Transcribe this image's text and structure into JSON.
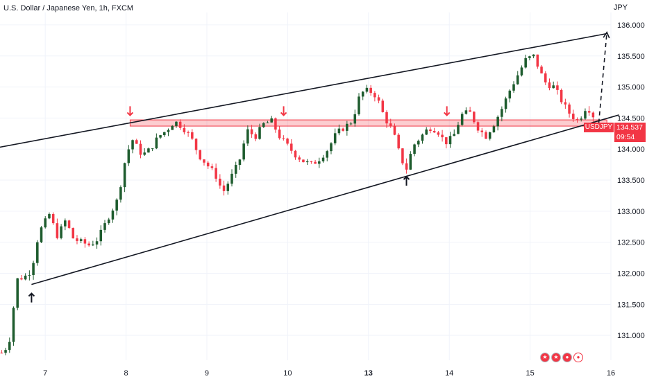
{
  "header": {
    "title_prefix": "U.S. Dollar / Japanese Yen, 1h, FXCM",
    "currency": "JPY"
  },
  "price_badge": {
    "symbol": "USDJPY",
    "price": "134.537",
    "countdown": "09:54",
    "color": "#f23645"
  },
  "bottom_icons": [
    "flag-us-icon",
    "flag-us-icon",
    "flag-jp-icon",
    "record-icon"
  ],
  "colors": {
    "up": "#089981",
    "up_fill": "#1e5c2e",
    "down": "#f23645",
    "trendline": "#131722",
    "zone_fill": "rgba(242,54,69,0.25)",
    "zone_border": "#f23645"
  },
  "chart_data": {
    "type": "candlestick",
    "title": "U.S. Dollar / Japanese Yen, 1h, FXCM",
    "ylabel": "JPY",
    "y_ticks": [
      "131.000",
      "131.500",
      "132.000",
      "132.500",
      "133.000",
      "133.500",
      "134.000",
      "134.500",
      "135.000",
      "135.500",
      "136.000"
    ],
    "ylim": [
      130.6,
      136.2
    ],
    "x_ticks": [
      {
        "label": "7",
        "x": 0.5,
        "bold": false
      },
      {
        "label": "8",
        "x": 1.5,
        "bold": false
      },
      {
        "label": "9",
        "x": 2.5,
        "bold": false
      },
      {
        "label": "10",
        "x": 3.5,
        "bold": false
      },
      {
        "label": "13",
        "x": 4.5,
        "bold": true
      },
      {
        "label": "14",
        "x": 5.5,
        "bold": false
      },
      {
        "label": "15",
        "x": 6.5,
        "bold": false
      },
      {
        "label": "16",
        "x": 7.5,
        "bold": false
      }
    ],
    "xlim": [
      -0.06,
      7.5
    ],
    "grid": true,
    "close_path": [
      [
        -0.04,
        130.72
      ],
      [
        0.05,
        130.85
      ],
      [
        0.15,
        131.9
      ],
      [
        0.25,
        131.95
      ],
      [
        0.33,
        132.05
      ],
      [
        0.42,
        132.65
      ],
      [
        0.55,
        132.95
      ],
      [
        0.65,
        132.6
      ],
      [
        0.75,
        132.85
      ],
      [
        0.85,
        132.55
      ],
      [
        0.95,
        132.5
      ],
      [
        1.05,
        132.45
      ],
      [
        1.15,
        132.55
      ],
      [
        1.3,
        132.95
      ],
      [
        1.4,
        133.2
      ],
      [
        1.5,
        133.9
      ],
      [
        1.58,
        134.15
      ],
      [
        1.7,
        133.9
      ],
      [
        1.8,
        134.0
      ],
      [
        1.9,
        134.2
      ],
      [
        2.0,
        134.3
      ],
      [
        2.1,
        134.45
      ],
      [
        2.2,
        134.35
      ],
      [
        2.3,
        134.2
      ],
      [
        2.4,
        133.9
      ],
      [
        2.5,
        133.75
      ],
      [
        2.6,
        133.6
      ],
      [
        2.7,
        133.3
      ],
      [
        2.8,
        133.55
      ],
      [
        2.9,
        133.8
      ],
      [
        3.0,
        134.3
      ],
      [
        3.1,
        134.2
      ],
      [
        3.2,
        134.4
      ],
      [
        3.3,
        134.45
      ],
      [
        3.4,
        134.2
      ],
      [
        3.5,
        134.05
      ],
      [
        3.6,
        133.9
      ],
      [
        3.7,
        133.8
      ],
      [
        3.8,
        133.75
      ],
      [
        3.9,
        133.85
      ],
      [
        4.0,
        134.0
      ],
      [
        4.1,
        134.25
      ],
      [
        4.2,
        134.35
      ],
      [
        4.3,
        134.45
      ],
      [
        4.4,
        134.9
      ],
      [
        4.5,
        134.95
      ],
      [
        4.6,
        134.85
      ],
      [
        4.7,
        134.5
      ],
      [
        4.8,
        134.3
      ],
      [
        4.9,
        133.85
      ],
      [
        4.97,
        133.68
      ],
      [
        5.05,
        134.05
      ],
      [
        5.15,
        134.2
      ],
      [
        5.25,
        134.35
      ],
      [
        5.35,
        134.3
      ],
      [
        5.45,
        134.1
      ],
      [
        5.55,
        134.2
      ],
      [
        5.65,
        134.55
      ],
      [
        5.75,
        134.6
      ],
      [
        5.85,
        134.35
      ],
      [
        5.95,
        134.2
      ],
      [
        6.05,
        134.4
      ],
      [
        6.15,
        134.65
      ],
      [
        6.25,
        134.95
      ],
      [
        6.35,
        135.2
      ],
      [
        6.45,
        135.45
      ],
      [
        6.55,
        135.5
      ],
      [
        6.62,
        135.25
      ],
      [
        6.7,
        135.05
      ],
      [
        6.8,
        135.0
      ],
      [
        6.9,
        134.75
      ],
      [
        7.0,
        134.55
      ],
      [
        7.1,
        134.45
      ],
      [
        7.2,
        134.7
      ],
      [
        7.28,
        134.537
      ]
    ],
    "support_zone": {
      "x0": 1.55,
      "x1": 7.45,
      "y0": 134.37,
      "y1": 134.47
    },
    "trendlines": [
      {
        "x0": -0.35,
        "y0": 133.96,
        "x1": 7.45,
        "y1": 135.86
      },
      {
        "x0": 0.33,
        "y0": 131.82,
        "x1": 7.6,
        "y1": 134.55
      }
    ],
    "projection": [
      [
        7.35,
        134.42
      ],
      [
        7.45,
        135.88
      ]
    ],
    "arrows": [
      {
        "type": "down",
        "x": 1.55,
        "y": 134.6
      },
      {
        "type": "down",
        "x": 3.45,
        "y": 134.6
      },
      {
        "type": "down",
        "x": 5.47,
        "y": 134.6
      },
      {
        "type": "up",
        "x": 0.33,
        "y": 131.62
      },
      {
        "type": "up",
        "x": 4.97,
        "y": 133.5
      }
    ]
  }
}
